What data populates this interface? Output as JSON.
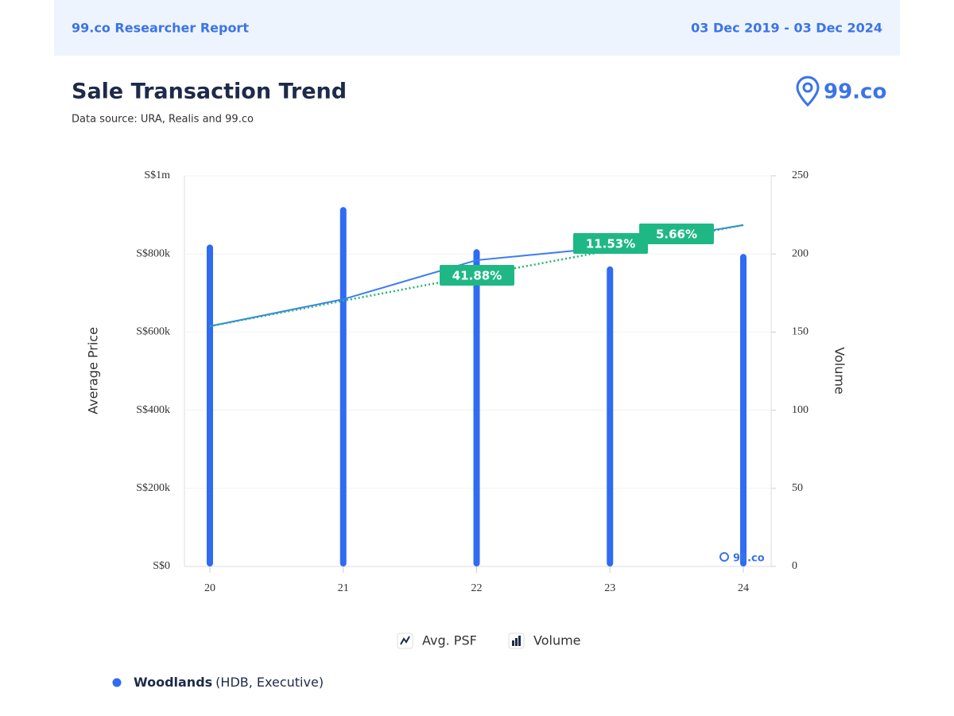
{
  "header": {
    "brand": "99.co Researcher Report",
    "date_range": "03 Dec 2019 - 03 Dec 2024"
  },
  "logo": "99.co",
  "chart_data": {
    "type": "combo",
    "title": "Sale Transaction Trend",
    "subtitle": "Data source: URA, Realis and 99.co",
    "ylabel": "Average Price",
    "y2label": "Volume",
    "categories": [
      "20",
      "21",
      "22",
      "23",
      "24"
    ],
    "series": [
      {
        "name": "Avg. PSF",
        "type": "line",
        "color": "#3b7cf5",
        "values": [
          615000,
          684000,
          784000,
          817000,
          874000
        ]
      },
      {
        "name": "Volume",
        "type": "bar",
        "axis": "y2",
        "color": "#2f6bf3",
        "values": [
          206,
          230,
          203,
          192,
          200
        ]
      },
      {
        "type": "line",
        "style": "dotted",
        "color": "#22b573",
        "values": [
          615000,
          680000,
          745000,
          809000,
          874000
        ]
      }
    ],
    "annotations": [
      "41.88%",
      "11.53%",
      "5.66%"
    ],
    "annotation_color": "#1fb884",
    "ylim": [
      0,
      1000000
    ],
    "yticks": [
      {
        "value": 0,
        "label": "S$0"
      },
      {
        "value": 200000,
        "label": "S$200k"
      },
      {
        "value": 400000,
        "label": "S$400k"
      },
      {
        "value": 600000,
        "label": "S$600k"
      },
      {
        "value": 800000,
        "label": "S$800k"
      },
      {
        "value": 1000000,
        "label": "S$1m"
      }
    ],
    "y2lim": [
      0,
      250
    ],
    "y2ticks": [
      0,
      50,
      100,
      150,
      200,
      250
    ],
    "grid": true,
    "watermark": "99.co"
  },
  "footer": {
    "area": "Woodlands",
    "detail": "(HDB, Executive)"
  }
}
